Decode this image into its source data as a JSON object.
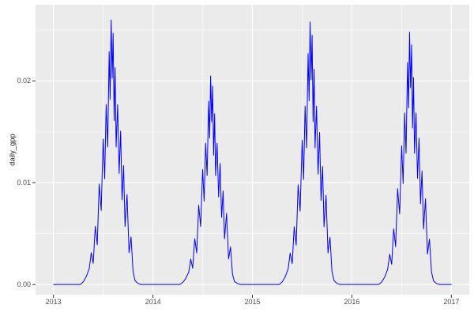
{
  "chart_data": {
    "type": "line",
    "title": "",
    "xlabel": "",
    "ylabel": "daily_gpp",
    "legend": "none",
    "grid": "on",
    "theme": "ggplot2-gray",
    "panel_bg": "#ebebeb",
    "grid_color": "#ffffff",
    "tick_color": "#333333",
    "line_color": "#0000ff",
    "xlim": [
      2012.82,
      2017.18
    ],
    "ylim": [
      -0.001,
      0.0275
    ],
    "x_ticks": [
      2013,
      2014,
      2015,
      2016,
      2017
    ],
    "x_tick_labels": [
      "2013",
      "2014",
      "2015",
      "2016",
      "2017"
    ],
    "y_ticks": [
      0,
      0.01,
      0.02
    ],
    "y_tick_labels": [
      "0.00",
      "0.01",
      "0.02"
    ],
    "x_minor": [
      2013.5,
      2014.5,
      2015.5,
      2016.5
    ],
    "y_minor": [
      0.005,
      0.015,
      0.025
    ],
    "series_name": "daily_gpp",
    "points": [
      [
        2013.0,
        0
      ],
      [
        2013.04,
        0
      ],
      [
        2013.12,
        0
      ],
      [
        2013.2,
        0
      ],
      [
        2013.27,
        0
      ],
      [
        2013.3,
        0.00026
      ],
      [
        2013.33,
        0.00078
      ],
      [
        2013.36,
        0.00156
      ],
      [
        2013.38,
        0.00312
      ],
      [
        2013.4,
        0.00208
      ],
      [
        2013.42,
        0.00572
      ],
      [
        2013.44,
        0.0039
      ],
      [
        2013.46,
        0.00988
      ],
      [
        2013.48,
        0.00728
      ],
      [
        2013.5,
        0.0143
      ],
      [
        2013.515,
        0.0104
      ],
      [
        2013.53,
        0.01768
      ],
      [
        2013.545,
        0.01352
      ],
      [
        2013.56,
        0.02288
      ],
      [
        2013.57,
        0.0182
      ],
      [
        2013.58,
        0.026
      ],
      [
        2013.59,
        0.02028
      ],
      [
        2013.6,
        0.0247
      ],
      [
        2013.61,
        0.01612
      ],
      [
        2013.62,
        0.02132
      ],
      [
        2013.63,
        0.01352
      ],
      [
        2013.645,
        0.01768
      ],
      [
        2013.66,
        0.01092
      ],
      [
        2013.675,
        0.01508
      ],
      [
        2013.69,
        0.00832
      ],
      [
        2013.705,
        0.0117
      ],
      [
        2013.72,
        0.00572
      ],
      [
        2013.74,
        0.00884
      ],
      [
        2013.76,
        0.00312
      ],
      [
        2013.78,
        0.00468
      ],
      [
        2013.8,
        0.0013
      ],
      [
        2013.82,
        0.00039
      ],
      [
        2013.85,
        0.0001
      ],
      [
        2013.88,
        0
      ],
      [
        2013.94,
        0
      ],
      [
        2014.04,
        0
      ],
      [
        2014.12,
        0
      ],
      [
        2014.2,
        0
      ],
      [
        2014.27,
        0
      ],
      [
        2014.3,
        0.0002
      ],
      [
        2014.33,
        0.0006
      ],
      [
        2014.36,
        0.0012
      ],
      [
        2014.38,
        0.0025
      ],
      [
        2014.4,
        0.0016
      ],
      [
        2014.42,
        0.0045
      ],
      [
        2014.44,
        0.0031
      ],
      [
        2014.46,
        0.0078
      ],
      [
        2014.48,
        0.0057
      ],
      [
        2014.5,
        0.0113
      ],
      [
        2014.515,
        0.0082
      ],
      [
        2014.53,
        0.0139
      ],
      [
        2014.545,
        0.0107
      ],
      [
        2014.56,
        0.018
      ],
      [
        2014.57,
        0.0144
      ],
      [
        2014.58,
        0.0205
      ],
      [
        2014.59,
        0.016
      ],
      [
        2014.6,
        0.0195
      ],
      [
        2014.61,
        0.0127
      ],
      [
        2014.62,
        0.0168
      ],
      [
        2014.63,
        0.0107
      ],
      [
        2014.645,
        0.0139
      ],
      [
        2014.66,
        0.0086
      ],
      [
        2014.675,
        0.0119
      ],
      [
        2014.69,
        0.0066
      ],
      [
        2014.705,
        0.0092
      ],
      [
        2014.72,
        0.0045
      ],
      [
        2014.74,
        0.007
      ],
      [
        2014.76,
        0.0025
      ],
      [
        2014.78,
        0.0037
      ],
      [
        2014.8,
        0.001
      ],
      [
        2014.82,
        0.0003
      ],
      [
        2014.85,
        0.0001
      ],
      [
        2014.88,
        0
      ],
      [
        2014.94,
        0
      ],
      [
        2015.04,
        0
      ],
      [
        2015.12,
        0
      ],
      [
        2015.2,
        0
      ],
      [
        2015.27,
        0
      ],
      [
        2015.3,
        0.00026
      ],
      [
        2015.33,
        0.00077
      ],
      [
        2015.36,
        0.00155
      ],
      [
        2015.38,
        0.0031
      ],
      [
        2015.4,
        0.00206
      ],
      [
        2015.42,
        0.00568
      ],
      [
        2015.44,
        0.00387
      ],
      [
        2015.46,
        0.0098
      ],
      [
        2015.48,
        0.00722
      ],
      [
        2015.5,
        0.01419
      ],
      [
        2015.515,
        0.01032
      ],
      [
        2015.53,
        0.01754
      ],
      [
        2015.545,
        0.01342
      ],
      [
        2015.56,
        0.0227
      ],
      [
        2015.57,
        0.01806
      ],
      [
        2015.58,
        0.0258
      ],
      [
        2015.59,
        0.02012
      ],
      [
        2015.6,
        0.02451
      ],
      [
        2015.61,
        0.016
      ],
      [
        2015.62,
        0.02116
      ],
      [
        2015.63,
        0.01342
      ],
      [
        2015.645,
        0.01754
      ],
      [
        2015.66,
        0.01084
      ],
      [
        2015.675,
        0.01496
      ],
      [
        2015.69,
        0.00826
      ],
      [
        2015.705,
        0.01161
      ],
      [
        2015.72,
        0.00568
      ],
      [
        2015.74,
        0.00877
      ],
      [
        2015.76,
        0.0031
      ],
      [
        2015.78,
        0.00464
      ],
      [
        2015.8,
        0.00129
      ],
      [
        2015.82,
        0.00039
      ],
      [
        2015.85,
        0.0001
      ],
      [
        2015.88,
        0
      ],
      [
        2015.94,
        0
      ],
      [
        2016.04,
        0
      ],
      [
        2016.12,
        0
      ],
      [
        2016.2,
        0
      ],
      [
        2016.27,
        0
      ],
      [
        2016.3,
        0.00025
      ],
      [
        2016.33,
        0.00074
      ],
      [
        2016.36,
        0.00149
      ],
      [
        2016.38,
        0.00298
      ],
      [
        2016.4,
        0.00198
      ],
      [
        2016.42,
        0.00546
      ],
      [
        2016.44,
        0.00372
      ],
      [
        2016.46,
        0.00942
      ],
      [
        2016.48,
        0.00694
      ],
      [
        2016.5,
        0.01364
      ],
      [
        2016.515,
        0.00992
      ],
      [
        2016.53,
        0.01686
      ],
      [
        2016.545,
        0.0129
      ],
      [
        2016.56,
        0.02182
      ],
      [
        2016.57,
        0.01736
      ],
      [
        2016.58,
        0.0248
      ],
      [
        2016.59,
        0.01934
      ],
      [
        2016.6,
        0.02356
      ],
      [
        2016.61,
        0.01538
      ],
      [
        2016.62,
        0.02034
      ],
      [
        2016.63,
        0.0129
      ],
      [
        2016.645,
        0.01686
      ],
      [
        2016.66,
        0.01042
      ],
      [
        2016.675,
        0.01438
      ],
      [
        2016.69,
        0.00794
      ],
      [
        2016.705,
        0.01116
      ],
      [
        2016.72,
        0.00546
      ],
      [
        2016.74,
        0.00843
      ],
      [
        2016.76,
        0.00298
      ],
      [
        2016.78,
        0.00446
      ],
      [
        2016.8,
        0.00124
      ],
      [
        2016.82,
        0.00037
      ],
      [
        2016.85,
        0.0001
      ],
      [
        2016.88,
        0
      ],
      [
        2016.94,
        0
      ],
      [
        2017.0,
        0
      ]
    ]
  }
}
